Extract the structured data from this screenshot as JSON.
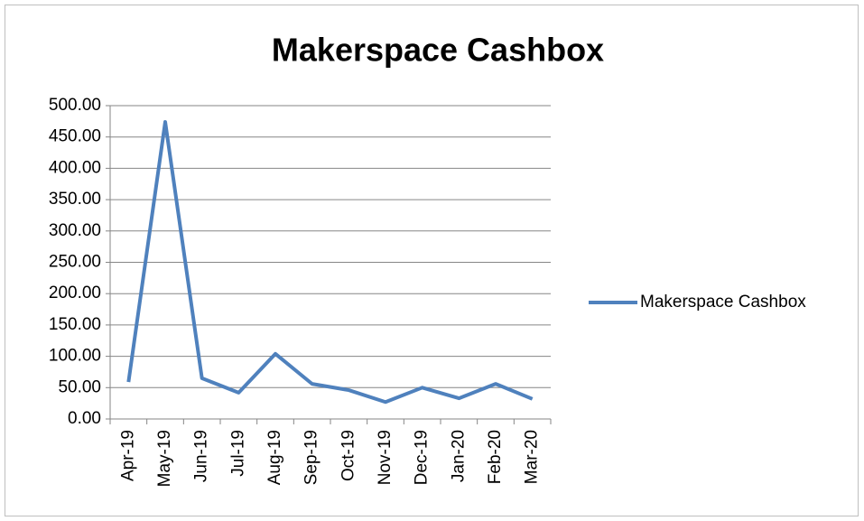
{
  "chart_data": {
    "type": "line",
    "title": "Makerspace Cashbox",
    "categories": [
      "Apr-19",
      "May-19",
      "Jun-19",
      "Jul-19",
      "Aug-19",
      "Sep-19",
      "Oct-19",
      "Nov-19",
      "Dec-19",
      "Jan-20",
      "Feb-20",
      "Mar-20"
    ],
    "series": [
      {
        "name": "Makerspace Cashbox",
        "color": "#4f81bd",
        "values": [
          59,
          474,
          65,
          42,
          104,
          56,
          46,
          27,
          50,
          33,
          56,
          32
        ]
      }
    ],
    "ylim": [
      0,
      500
    ],
    "yticks": [
      {
        "value": 0,
        "label": "0.00"
      },
      {
        "value": 50,
        "label": "50.00"
      },
      {
        "value": 100,
        "label": "100.00"
      },
      {
        "value": 150,
        "label": "150.00"
      },
      {
        "value": 200,
        "label": "200.00"
      },
      {
        "value": 250,
        "label": "250.00"
      },
      {
        "value": 300,
        "label": "300.00"
      },
      {
        "value": 350,
        "label": "350.00"
      },
      {
        "value": 400,
        "label": "400.00"
      },
      {
        "value": 450,
        "label": "450.00"
      },
      {
        "value": 500,
        "label": "500.00"
      }
    ],
    "grid": true,
    "legend": "right"
  }
}
